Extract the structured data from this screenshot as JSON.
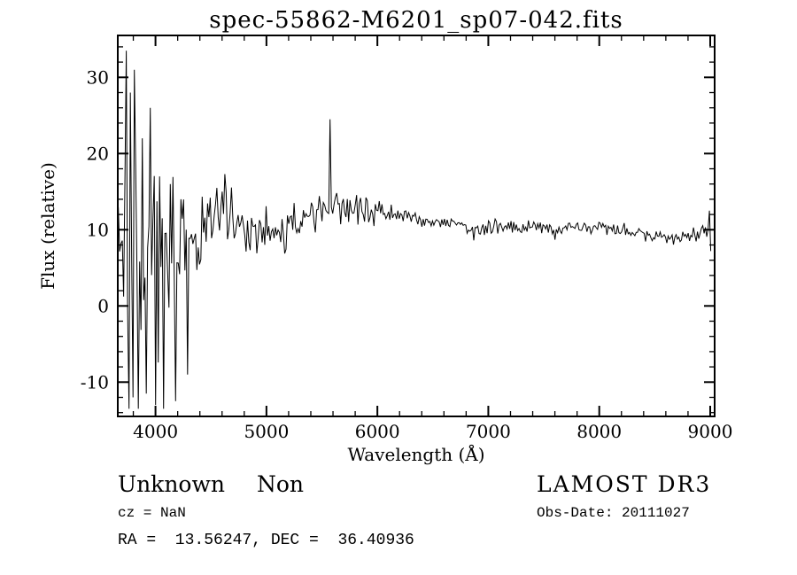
{
  "annotations": {
    "class_name": "Unknown",
    "subclass": "Non",
    "survey": "LAMOST DR3",
    "cz": "cz = NaN",
    "obs_date": "Obs-Date: 20111027",
    "coords": "RA =  13.56247, DEC =  36.40936"
  },
  "chart_data": {
    "type": "line",
    "title": "spec-55862-M6201_sp07-042.fits",
    "xlabel": "Wavelength (Å)",
    "ylabel": "Flux (relative)",
    "xlim": [
      3660,
      9040
    ],
    "ylim": [
      -14.5,
      35.5
    ],
    "x_major_ticks": [
      4000,
      5000,
      6000,
      7000,
      8000,
      9000
    ],
    "x_minor_step": 200,
    "y_major_ticks": [
      -10,
      0,
      10,
      20,
      30
    ],
    "y_minor_step": 2,
    "grid": false,
    "legend": false,
    "line_color": "#000000",
    "axis_color": "#000000",
    "background_color": "#ffffff",
    "generation": {
      "seed": 20111027,
      "x_start": 3665,
      "x_end": 9005,
      "step": 12,
      "noise_multiplier": 1.25,
      "continuum": [
        [
          3665,
          7
        ],
        [
          3750,
          8
        ],
        [
          3850,
          7.5
        ],
        [
          3950,
          6.5
        ],
        [
          4050,
          5
        ],
        [
          4150,
          5.5
        ],
        [
          4250,
          6.5
        ],
        [
          4350,
          8
        ],
        [
          4450,
          11
        ],
        [
          4550,
          13
        ],
        [
          4620,
          13.5
        ],
        [
          4700,
          11.5
        ],
        [
          4800,
          10.5
        ],
        [
          4870,
          9.5
        ],
        [
          4950,
          10
        ],
        [
          5050,
          10
        ],
        [
          5150,
          9.8
        ],
        [
          5250,
          10.8
        ],
        [
          5350,
          11.5
        ],
        [
          5450,
          12.2
        ],
        [
          5550,
          12.8
        ],
        [
          5650,
          13
        ],
        [
          5800,
          12.8
        ],
        [
          5950,
          12.4
        ],
        [
          6100,
          12
        ],
        [
          6250,
          11.6
        ],
        [
          6400,
          11.1
        ],
        [
          6550,
          11.2
        ],
        [
          6700,
          10.9
        ],
        [
          6870,
          10
        ],
        [
          7000,
          10.3
        ],
        [
          7150,
          10.5
        ],
        [
          7300,
          10.4
        ],
        [
          7450,
          10.6
        ],
        [
          7600,
          10
        ],
        [
          7750,
          10.3
        ],
        [
          7900,
          10.3
        ],
        [
          8050,
          10.3
        ],
        [
          8200,
          10
        ],
        [
          8350,
          9.5
        ],
        [
          8500,
          9.1
        ],
        [
          8650,
          8.8
        ],
        [
          8800,
          9.2
        ],
        [
          8950,
          9.6
        ],
        [
          9005,
          9
        ]
      ],
      "noise_amplitude": [
        [
          3665,
          13
        ],
        [
          3760,
          14
        ],
        [
          3900,
          13
        ],
        [
          4000,
          12
        ],
        [
          4100,
          11
        ],
        [
          4200,
          9
        ],
        [
          4300,
          7
        ],
        [
          4400,
          5.5
        ],
        [
          4500,
          4.2
        ],
        [
          4650,
          3.6
        ],
        [
          4800,
          3.2
        ],
        [
          5000,
          2.8
        ],
        [
          5200,
          2.6
        ],
        [
          5400,
          2.4
        ],
        [
          5600,
          2.2
        ],
        [
          5800,
          2.0
        ],
        [
          6000,
          1.7
        ],
        [
          6200,
          1.4
        ],
        [
          6400,
          1.2
        ],
        [
          6700,
          1.0
        ],
        [
          7000,
          0.95
        ],
        [
          7400,
          0.85
        ],
        [
          7800,
          0.8
        ],
        [
          8200,
          0.85
        ],
        [
          8600,
          0.95
        ],
        [
          9005,
          1.3
        ]
      ],
      "spikes": [
        [
          3737,
          33.5
        ],
        [
          3757,
          -13.5
        ],
        [
          3773,
          28
        ],
        [
          3791,
          -12
        ],
        [
          3811,
          31
        ],
        [
          3845,
          -13.5
        ],
        [
          3877,
          22
        ],
        [
          3921,
          -11.5
        ],
        [
          3957,
          26
        ],
        [
          3997,
          -13
        ],
        [
          4037,
          17
        ],
        [
          4077,
          -13.5
        ],
        [
          4131,
          16
        ],
        [
          4177,
          -12.5
        ],
        [
          4231,
          14
        ],
        [
          4291,
          -9
        ],
        [
          5577,
          24.5
        ],
        [
          6868,
          8.6
        ],
        [
          7604,
          8.7
        ],
        [
          8988,
          12.5
        ],
        [
          9002,
          7.2
        ]
      ]
    }
  }
}
